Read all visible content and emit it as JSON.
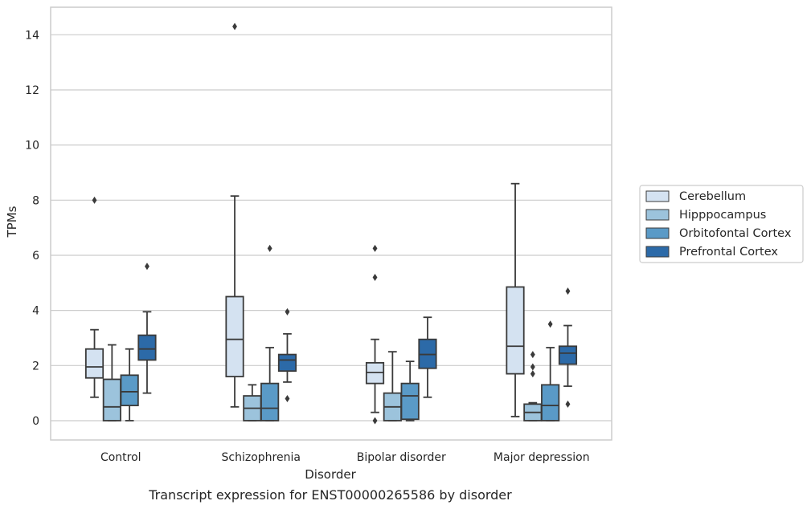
{
  "chart_data": {
    "type": "box",
    "title": "",
    "caption": "Transcript expression for ENST00000265586 by disorder",
    "xlabel": "Disorder",
    "ylabel": "TPMs",
    "ylim": [
      -0.7,
      15
    ],
    "yticks": [
      0,
      2,
      4,
      6,
      8,
      10,
      12,
      14
    ],
    "grid": "horizontal",
    "legend_position": "right",
    "categories": [
      "Control",
      "Schizophrenia",
      "Bipolar disorder",
      "Major depression"
    ],
    "series": [
      {
        "name": "Cerebellum",
        "color": "#d4e2f1",
        "boxes": [
          {
            "whislo": 0.85,
            "q1": 1.55,
            "med": 1.95,
            "q3": 2.6,
            "whishi": 3.3,
            "fliers": [
              8.0
            ]
          },
          {
            "whislo": 0.5,
            "q1": 1.6,
            "med": 2.95,
            "q3": 4.5,
            "whishi": 8.15,
            "fliers": [
              14.3
            ]
          },
          {
            "whislo": 0.3,
            "q1": 1.35,
            "med": 1.75,
            "q3": 2.1,
            "whishi": 2.95,
            "fliers": [
              0.0,
              5.2,
              6.25
            ]
          },
          {
            "whislo": 0.15,
            "q1": 1.7,
            "med": 2.7,
            "q3": 4.85,
            "whishi": 8.6,
            "fliers": []
          }
        ]
      },
      {
        "name": "Hipppocampus",
        "color": "#9cc3dc",
        "boxes": [
          {
            "whislo": 0.0,
            "q1": 0.0,
            "med": 0.5,
            "q3": 1.5,
            "whishi": 2.75,
            "fliers": []
          },
          {
            "whislo": 0.0,
            "q1": 0.0,
            "med": 0.45,
            "q3": 0.9,
            "whishi": 1.3,
            "fliers": []
          },
          {
            "whislo": 0.0,
            "q1": 0.0,
            "med": 0.5,
            "q3": 1.0,
            "whishi": 2.5,
            "fliers": []
          },
          {
            "whislo": 0.0,
            "q1": 0.0,
            "med": 0.3,
            "q3": 0.6,
            "whishi": 0.65,
            "fliers": []
          }
        ]
      },
      {
        "name": "Orbitofontal Cortex",
        "color": "#5a9ac7",
        "boxes": [
          {
            "whislo": 0.0,
            "q1": 0.55,
            "med": 1.05,
            "q3": 1.65,
            "whishi": 2.6,
            "fliers": []
          },
          {
            "whislo": 0.0,
            "q1": 0.0,
            "med": 0.45,
            "q3": 1.35,
            "whishi": 2.65,
            "fliers": [
              6.25
            ]
          },
          {
            "whislo": 0.0,
            "q1": 0.05,
            "med": 0.9,
            "q3": 1.35,
            "whishi": 2.15,
            "fliers": []
          },
          {
            "whislo": 0.0,
            "q1": 0.0,
            "med": 0.55,
            "q3": 1.3,
            "whishi": 2.65,
            "fliers": [
              3.5
            ]
          }
        ]
      },
      {
        "name": "Prefrontal Cortex",
        "color": "#2c6aa8",
        "boxes": [
          {
            "whislo": 1.0,
            "q1": 2.2,
            "med": 2.6,
            "q3": 3.1,
            "whishi": 3.95,
            "fliers": [
              5.6
            ]
          },
          {
            "whislo": 1.4,
            "q1": 1.8,
            "med": 2.2,
            "q3": 2.4,
            "whishi": 3.15,
            "fliers": [
              0.8,
              3.95
            ]
          },
          {
            "whislo": 0.85,
            "q1": 1.9,
            "med": 2.4,
            "q3": 2.95,
            "whishi": 3.75,
            "fliers": []
          },
          {
            "whislo": 1.25,
            "q1": 2.05,
            "med": 2.45,
            "q3": 2.7,
            "whishi": 3.45,
            "fliers": [
              0.6,
              4.7
            ]
          }
        ]
      }
    ],
    "extra_fliers": [
      {
        "category": "Major depression",
        "series": "Cerebellum",
        "values": []
      },
      {
        "category": "Major depression",
        "series": "Hipppocampus",
        "values": [
          1.7,
          1.95,
          2.4
        ]
      }
    ]
  }
}
